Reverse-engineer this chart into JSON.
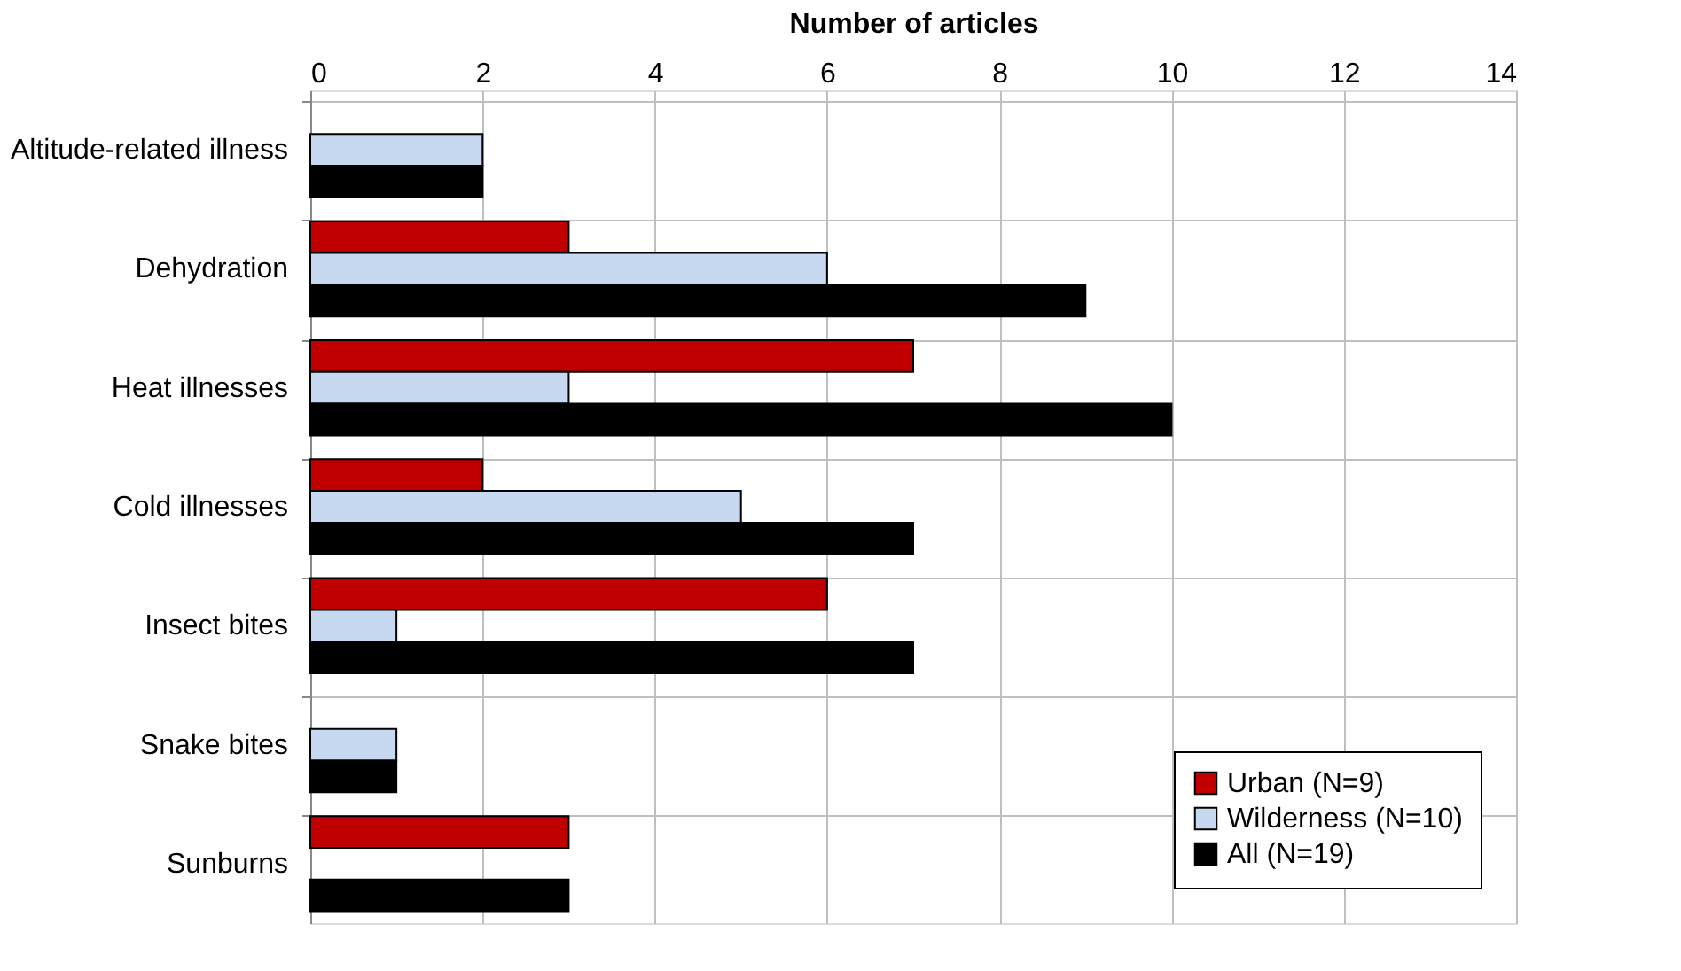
{
  "chart_data": {
    "type": "bar",
    "orientation": "horizontal",
    "xlabel": "Number of articles",
    "categories": [
      "Altitude-related illness",
      "Dehydration",
      "Heat illnesses",
      "Cold illnesses",
      "Insect bites",
      "Snake bites",
      "Sunburns"
    ],
    "series": [
      {
        "name": "Urban (N=9)",
        "color": "#c00000",
        "values": [
          null,
          3,
          7,
          2,
          6,
          null,
          3
        ]
      },
      {
        "name": "Wilderness (N=10)",
        "color": "#c6d9f1",
        "values": [
          2,
          6,
          3,
          5,
          1,
          1,
          null
        ]
      },
      {
        "name": "All (N=19)",
        "color": "#000000",
        "values": [
          2,
          9,
          10,
          7,
          7,
          1,
          3
        ]
      }
    ],
    "xlim": [
      0,
      14
    ],
    "xticks": [
      0,
      2,
      4,
      6,
      8,
      10,
      12,
      14
    ],
    "grid": true,
    "legend": "bottom right"
  }
}
